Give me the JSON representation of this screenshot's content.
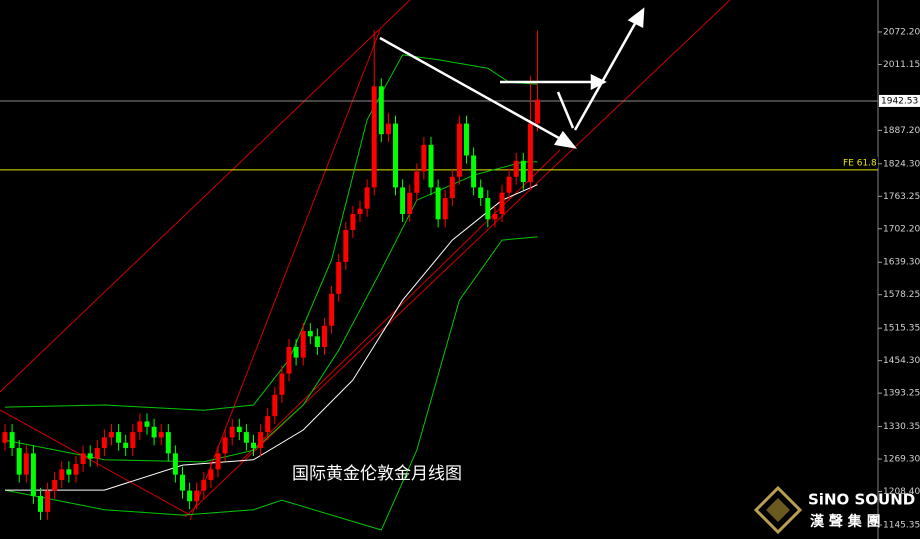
{
  "chart_data": {
    "type": "candlestick",
    "title": "国际黄金伦敦金月线图",
    "brand": "SiNO SOUND",
    "brand_sub": "漢 聲 集 團",
    "up_color": "#ff0000",
    "down_color": "#00ff00",
    "open": [
      1300,
      1320,
      1290,
      1240,
      1280,
      1200,
      1170,
      1210,
      1230,
      1250,
      1240,
      1260,
      1280,
      1270,
      1290,
      1310,
      1320,
      1300,
      1290,
      1320,
      1340,
      1330,
      1310,
      1320,
      1280,
      1240,
      1210,
      1190,
      1210,
      1230,
      1250,
      1280,
      1310,
      1330,
      1320,
      1300,
      1290,
      1320,
      1350,
      1390,
      1430,
      1480,
      1460,
      1510,
      1500,
      1480,
      1520,
      1580,
      1640,
      1700,
      1730,
      1740,
      1780,
      1970,
      1880,
      1900,
      1780,
      1730,
      1770,
      1810,
      1860,
      1780,
      1720,
      1760,
      1800,
      1900,
      1840,
      1780,
      1760,
      1720,
      1730,
      1770,
      1800,
      1830,
      1790,
      1900
    ],
    "high": [
      1335,
      1335,
      1305,
      1295,
      1295,
      1215,
      1225,
      1245,
      1265,
      1265,
      1275,
      1295,
      1295,
      1305,
      1325,
      1335,
      1335,
      1315,
      1335,
      1355,
      1355,
      1345,
      1335,
      1335,
      1295,
      1255,
      1225,
      1225,
      1245,
      1265,
      1295,
      1325,
      1345,
      1345,
      1335,
      1315,
      1335,
      1365,
      1405,
      1445,
      1495,
      1495,
      1525,
      1525,
      1515,
      1535,
      1595,
      1655,
      1715,
      1745,
      1755,
      1795,
      2075,
      1985,
      1920,
      1915,
      1795,
      1785,
      1825,
      1875,
      1875,
      1795,
      1775,
      1815,
      1915,
      1915,
      1855,
      1795,
      1775,
      1745,
      1785,
      1815,
      1845,
      1845,
      1990,
      2075
    ],
    "low": [
      1285,
      1275,
      1225,
      1225,
      1185,
      1155,
      1155,
      1195,
      1215,
      1225,
      1225,
      1245,
      1255,
      1255,
      1275,
      1295,
      1285,
      1275,
      1275,
      1305,
      1315,
      1295,
      1295,
      1265,
      1225,
      1195,
      1175,
      1175,
      1195,
      1215,
      1235,
      1265,
      1295,
      1305,
      1285,
      1275,
      1275,
      1305,
      1335,
      1375,
      1415,
      1445,
      1445,
      1485,
      1465,
      1465,
      1505,
      1565,
      1625,
      1685,
      1715,
      1725,
      1765,
      1865,
      1865,
      1765,
      1715,
      1715,
      1755,
      1795,
      1765,
      1705,
      1705,
      1745,
      1785,
      1825,
      1765,
      1745,
      1705,
      1705,
      1715,
      1755,
      1785,
      1775,
      1775,
      1885
    ],
    "close": [
      1320,
      1290,
      1240,
      1280,
      1200,
      1170,
      1210,
      1230,
      1250,
      1240,
      1260,
      1280,
      1270,
      1290,
      1310,
      1320,
      1300,
      1290,
      1320,
      1340,
      1330,
      1310,
      1320,
      1280,
      1240,
      1210,
      1190,
      1210,
      1230,
      1250,
      1280,
      1310,
      1330,
      1320,
      1300,
      1290,
      1320,
      1350,
      1390,
      1430,
      1480,
      1460,
      1510,
      1500,
      1480,
      1520,
      1580,
      1640,
      1700,
      1730,
      1740,
      1780,
      1970,
      1880,
      1900,
      1780,
      1730,
      1770,
      1810,
      1860,
      1780,
      1720,
      1760,
      1800,
      1900,
      1840,
      1780,
      1760,
      1720,
      1730,
      1770,
      1800,
      1830,
      1790,
      1900,
      1945
    ],
    "indicators": [
      {
        "color": "#00c800",
        "x": [
          0,
          14,
          28,
          35,
          40,
          46,
          51,
          56,
          61,
          68,
          71,
          75
        ],
        "values": [
          1367,
          1371,
          1361,
          1371,
          1456,
          1644,
          1907,
          2029,
          2020,
          2004,
          1978,
          1974
        ]
      },
      {
        "color": "#00c800",
        "x": [
          0,
          14,
          28,
          35,
          42,
          47,
          53,
          58,
          66,
          73,
          75
        ],
        "values": [
          1305,
          1268,
          1264,
          1286,
          1371,
          1474,
          1625,
          1756,
          1803,
          1828,
          1828
        ]
      },
      {
        "color": "#00c800",
        "x": [
          0,
          14,
          25,
          35,
          39,
          53,
          58,
          64,
          70,
          75
        ],
        "values": [
          1211,
          1174,
          1164,
          1174,
          1192,
          1136,
          1286,
          1568,
          1681,
          1687
        ]
      },
      {
        "color": "#ffffff",
        "x": [
          0,
          14,
          25,
          35,
          42,
          49,
          56,
          63,
          70,
          75
        ],
        "values": [
          1211,
          1211,
          1258,
          1268,
          1324,
          1418,
          1568,
          1681,
          1756,
          1785
        ]
      }
    ],
    "hlines": [
      {
        "value": 1942.53,
        "color": "#8c8c8c"
      },
      {
        "value": 1813,
        "color": "#e6e600",
        "label": "FE 61.8"
      }
    ],
    "ylim": [
      1119,
      2132.3
    ],
    "yticks": [
      {
        "value": 2072.2,
        "label": "2072.20"
      },
      2011.15,
      {
        "value": 1887.2,
        "label": "1887.20"
      },
      {
        "value": 1824.3,
        "label": "1824.30"
      },
      1763.25,
      {
        "value": 1702.2,
        "label": "1702.20"
      },
      {
        "value": 1639.3,
        "label": "1639.30"
      },
      1578.25,
      1515.35,
      {
        "value": 1454.3,
        "label": "1454.30"
      },
      1393.25,
      1330.35,
      {
        "value": 1269.3,
        "label": "1269.30"
      },
      {
        "value": 1208.4,
        "label": "1208.40"
      },
      1145.35
    ]
  }
}
